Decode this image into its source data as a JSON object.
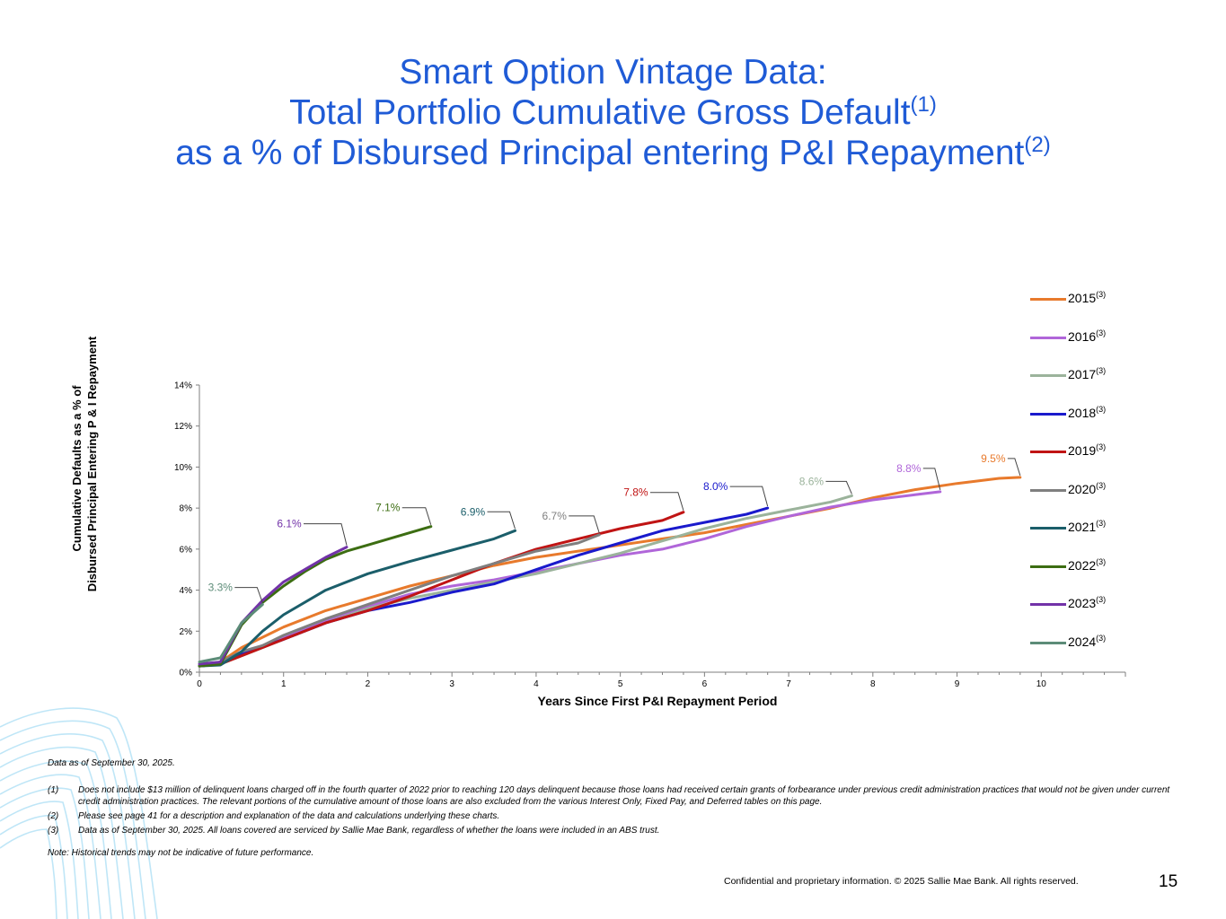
{
  "slide": {
    "title_line1": "Smart Option Vintage Data:",
    "title_line2": "Total Portfolio Cumulative Gross Default",
    "title_line2_sup": "(1)",
    "title_line3": "as a % of Disbursed Principal entering P&I Repayment",
    "title_line3_sup": "(2)",
    "page_number": "15",
    "confidential": "Confidential and proprietary information. © 2025 Sallie Mae Bank. All rights reserved."
  },
  "notes": {
    "as_of": "Data as of September 30, 2025.",
    "footnotes": [
      {
        "marker": "(1)",
        "text": "Does not include $13 million of delinquent loans charged off in the fourth quarter of 2022 prior to reaching 120 days delinquent because those loans had received certain grants of forbearance under previous credit administration practices that would not be given under current credit administration practices. The relevant portions of the cumulative amount of those loans are also excluded from the various Interest Only, Fixed Pay, and Deferred tables on this page."
      },
      {
        "marker": "(2)",
        "text": "Please see page 41 for a description and explanation of the data and calculations underlying these charts."
      },
      {
        "marker": "(3)",
        "text": "Data as of  September 30, 2025. All loans covered are serviced by Sallie Mae Bank, regardless of whether the loans were included in an ABS trust."
      }
    ],
    "historical": "Note: Historical trends may not be indicative of future performance."
  },
  "chart_data": {
    "type": "line",
    "title": "",
    "xlabel": "Years Since First P&I Repayment Period",
    "ylabel_line1": "Cumulative Defaults as a % of",
    "ylabel_line2": "Disbursed Principal  Entering P & I Repayment",
    "xlim": [
      0,
      11
    ],
    "ylim": [
      0,
      14
    ],
    "x_ticks": [
      0,
      1,
      2,
      3,
      4,
      5,
      6,
      7,
      8,
      9,
      10
    ],
    "y_ticks": [
      0,
      2,
      4,
      6,
      8,
      10,
      12,
      14
    ],
    "y_tick_labels": [
      "0%",
      "2%",
      "4%",
      "6%",
      "8%",
      "10%",
      "12%",
      "14%"
    ],
    "legend_position": "right",
    "legend_sup": "(3)",
    "series": [
      {
        "name": "2015",
        "color": "#e87a2c",
        "end_label": "9.5%",
        "points": [
          [
            0,
            0.3
          ],
          [
            0.25,
            0.5
          ],
          [
            0.5,
            1.2
          ],
          [
            0.75,
            1.7
          ],
          [
            1,
            2.2
          ],
          [
            1.5,
            3
          ],
          [
            2,
            3.6
          ],
          [
            2.5,
            4.2
          ],
          [
            3,
            4.7
          ],
          [
            3.5,
            5.2
          ],
          [
            4,
            5.6
          ],
          [
            4.5,
            5.9
          ],
          [
            5,
            6.2
          ],
          [
            5.5,
            6.5
          ],
          [
            6,
            6.8
          ],
          [
            6.5,
            7.2
          ],
          [
            7,
            7.6
          ],
          [
            7.5,
            8
          ],
          [
            8,
            8.5
          ],
          [
            8.5,
            8.9
          ],
          [
            9,
            9.2
          ],
          [
            9.5,
            9.45
          ],
          [
            9.75,
            9.5
          ]
        ]
      },
      {
        "name": "2016",
        "color": "#b066d9",
        "end_label": "8.8%",
        "points": [
          [
            0,
            0.3
          ],
          [
            0.25,
            0.4
          ],
          [
            0.5,
            0.9
          ],
          [
            1,
            1.7
          ],
          [
            1.5,
            2.5
          ],
          [
            2,
            3.2
          ],
          [
            2.5,
            3.8
          ],
          [
            3,
            4.2
          ],
          [
            3.5,
            4.5
          ],
          [
            4,
            4.9
          ],
          [
            4.5,
            5.3
          ],
          [
            5,
            5.7
          ],
          [
            5.5,
            6
          ],
          [
            6,
            6.5
          ],
          [
            6.5,
            7.1
          ],
          [
            7,
            7.6
          ],
          [
            7.5,
            8.05
          ],
          [
            8,
            8.4
          ],
          [
            8.5,
            8.65
          ],
          [
            8.8,
            8.8
          ]
        ]
      },
      {
        "name": "2017",
        "color": "#9bb39b",
        "end_label": "8.6%",
        "points": [
          [
            0,
            0.3
          ],
          [
            0.25,
            0.4
          ],
          [
            0.5,
            0.8
          ],
          [
            1,
            1.6
          ],
          [
            1.5,
            2.4
          ],
          [
            2,
            3.1
          ],
          [
            2.5,
            3.6
          ],
          [
            3,
            4
          ],
          [
            3.5,
            4.4
          ],
          [
            4,
            4.8
          ],
          [
            4.5,
            5.3
          ],
          [
            5,
            5.8
          ],
          [
            5.5,
            6.4
          ],
          [
            6,
            7
          ],
          [
            6.5,
            7.5
          ],
          [
            7,
            7.9
          ],
          [
            7.5,
            8.3
          ],
          [
            7.75,
            8.6
          ]
        ]
      },
      {
        "name": "2018",
        "color": "#1a1acc",
        "end_label": "8.0%",
        "points": [
          [
            0,
            0.3
          ],
          [
            0.25,
            0.4
          ],
          [
            0.5,
            0.9
          ],
          [
            1,
            1.6
          ],
          [
            1.5,
            2.4
          ],
          [
            2,
            3
          ],
          [
            2.5,
            3.4
          ],
          [
            3,
            3.9
          ],
          [
            3.5,
            4.3
          ],
          [
            4,
            5
          ],
          [
            4.5,
            5.7
          ],
          [
            5,
            6.3
          ],
          [
            5.5,
            6.9
          ],
          [
            6,
            7.3
          ],
          [
            6.5,
            7.7
          ],
          [
            6.75,
            8
          ]
        ]
      },
      {
        "name": "2019",
        "color": "#c01414",
        "end_label": "7.8%",
        "points": [
          [
            0,
            0.3
          ],
          [
            0.25,
            0.4
          ],
          [
            0.5,
            0.8
          ],
          [
            1,
            1.6
          ],
          [
            1.5,
            2.4
          ],
          [
            2,
            3
          ],
          [
            2.5,
            3.7
          ],
          [
            3,
            4.5
          ],
          [
            3.5,
            5.3
          ],
          [
            4,
            6
          ],
          [
            4.5,
            6.5
          ],
          [
            5,
            7
          ],
          [
            5.5,
            7.4
          ],
          [
            5.75,
            7.8
          ]
        ]
      },
      {
        "name": "2020",
        "color": "#7f7f7f",
        "end_label": "6.7%",
        "points": [
          [
            0,
            0.3
          ],
          [
            0.25,
            0.5
          ],
          [
            0.5,
            1
          ],
          [
            0.75,
            1.3
          ],
          [
            1,
            1.8
          ],
          [
            1.5,
            2.6
          ],
          [
            2,
            3.3
          ],
          [
            2.5,
            4
          ],
          [
            3,
            4.7
          ],
          [
            3.5,
            5.3
          ],
          [
            4,
            5.9
          ],
          [
            4.5,
            6.3
          ],
          [
            4.75,
            6.7
          ]
        ]
      },
      {
        "name": "2021",
        "color": "#1b5e6a",
        "end_label": "6.9%",
        "points": [
          [
            0,
            0.3
          ],
          [
            0.25,
            0.35
          ],
          [
            0.5,
            1
          ],
          [
            0.75,
            2
          ],
          [
            1,
            2.8
          ],
          [
            1.5,
            4
          ],
          [
            2,
            4.8
          ],
          [
            2.5,
            5.4
          ],
          [
            3,
            5.95
          ],
          [
            3.5,
            6.5
          ],
          [
            3.75,
            6.9
          ]
        ]
      },
      {
        "name": "2022",
        "color": "#3c6d12",
        "end_label": "7.1%",
        "points": [
          [
            0,
            0.3
          ],
          [
            0.25,
            0.4
          ],
          [
            0.5,
            2.3
          ],
          [
            0.75,
            3.4
          ],
          [
            1,
            4.2
          ],
          [
            1.25,
            4.9
          ],
          [
            1.5,
            5.5
          ],
          [
            1.75,
            5.9
          ],
          [
            2,
            6.2
          ],
          [
            2.25,
            6.5
          ],
          [
            2.5,
            6.8
          ],
          [
            2.75,
            7.1
          ]
        ]
      },
      {
        "name": "2023",
        "color": "#7232a8",
        "end_label": "6.1%",
        "points": [
          [
            0,
            0.4
          ],
          [
            0.25,
            0.5
          ],
          [
            0.5,
            2.4
          ],
          [
            0.75,
            3.5
          ],
          [
            1,
            4.4
          ],
          [
            1.25,
            5
          ],
          [
            1.5,
            5.6
          ],
          [
            1.75,
            6.1
          ]
        ]
      },
      {
        "name": "2024",
        "color": "#5c8c78",
        "end_label": "3.3%",
        "points": [
          [
            0,
            0.5
          ],
          [
            0.25,
            0.7
          ],
          [
            0.5,
            2.4
          ],
          [
            0.75,
            3.3
          ]
        ]
      }
    ]
  }
}
